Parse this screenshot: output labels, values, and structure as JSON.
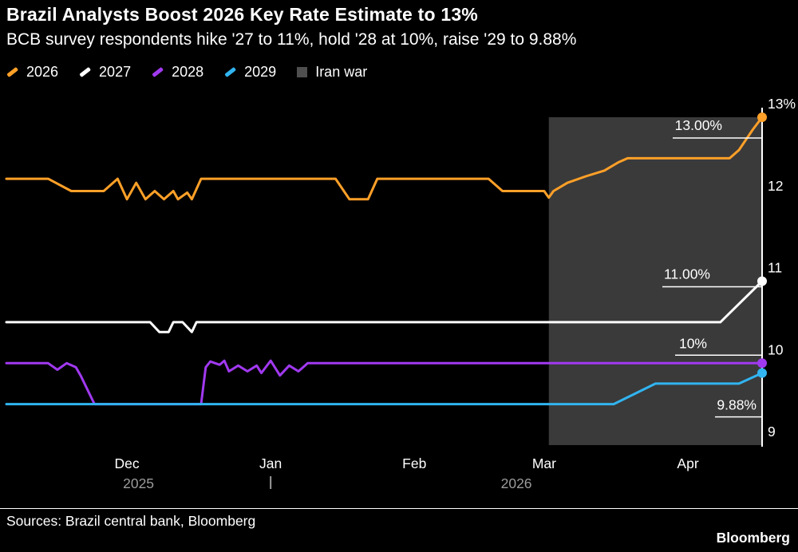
{
  "header": {
    "title": "Brazil Analysts Boost 2026 Key Rate Estimate to 13%",
    "subtitle": "BCB survey respondents hike '27 to 11%, hold '28 at 10%, raise '29 to 9.88%"
  },
  "legend": {
    "items": [
      {
        "label": "2026",
        "color": "#FFA028",
        "marker": "line"
      },
      {
        "label": "2027",
        "color": "#FFFFFF",
        "marker": "line"
      },
      {
        "label": "2028",
        "color": "#A139F0",
        "marker": "line"
      },
      {
        "label": "2029",
        "color": "#31B4F0",
        "marker": "line"
      },
      {
        "label": "Iran war",
        "color": "#4F4F4F",
        "marker": "square"
      }
    ]
  },
  "chart_data": {
    "type": "line",
    "title": "Brazil Analysts Boost 2026 Key Rate Estimate to 13%",
    "x_axis": {
      "max_day": 163,
      "month_ticks": [
        {
          "day": 26,
          "label": "Dec"
        },
        {
          "day": 57,
          "label": "Jan"
        },
        {
          "day": 88,
          "label": "Feb"
        },
        {
          "day": 116,
          "label": "Mar"
        },
        {
          "day": 147,
          "label": "Apr"
        }
      ],
      "year_labels": [
        {
          "label": "2025",
          "start_day": 0,
          "end_day": 57
        },
        {
          "label": "2026",
          "start_day": 57,
          "end_day": 163
        }
      ],
      "year_boundary_day": 57
    },
    "y_axis": {
      "min": 9,
      "max": 13,
      "ticks": [
        {
          "value": 13,
          "label": "13%"
        },
        {
          "value": 12,
          "label": "12"
        },
        {
          "value": 11,
          "label": "11"
        },
        {
          "value": 10,
          "label": "10"
        },
        {
          "value": 9,
          "label": "9"
        }
      ]
    },
    "shaded_region": {
      "label": "Iran war",
      "start_day": 117,
      "end_day": 163,
      "color": "#3A3A3A"
    },
    "series": [
      {
        "name": "2026",
        "color": "#FFA028",
        "end_label": "13.00%",
        "points": [
          [
            0,
            12.25
          ],
          [
            9,
            12.25
          ],
          [
            14,
            12.1
          ],
          [
            21,
            12.1
          ],
          [
            24,
            12.25
          ],
          [
            26,
            12.0
          ],
          [
            28,
            12.2
          ],
          [
            30,
            12.0
          ],
          [
            32,
            12.1
          ],
          [
            34,
            12.0
          ],
          [
            36,
            12.1
          ],
          [
            37,
            12.0
          ],
          [
            39,
            12.08
          ],
          [
            40,
            12.0
          ],
          [
            42,
            12.25
          ],
          [
            71,
            12.25
          ],
          [
            74,
            12.0
          ],
          [
            78,
            12.0
          ],
          [
            80,
            12.25
          ],
          [
            104,
            12.25
          ],
          [
            107,
            12.1
          ],
          [
            116,
            12.1
          ],
          [
            117,
            12.02
          ],
          [
            118,
            12.1
          ],
          [
            121,
            12.2
          ],
          [
            125,
            12.28
          ],
          [
            129,
            12.35
          ],
          [
            132,
            12.45
          ],
          [
            134,
            12.5
          ],
          [
            156,
            12.5
          ],
          [
            158,
            12.6
          ],
          [
            161,
            12.85
          ],
          [
            163,
            13.0
          ]
        ]
      },
      {
        "name": "2027",
        "color": "#FFFFFF",
        "end_label": "11.00%",
        "points": [
          [
            0,
            10.5
          ],
          [
            31,
            10.5
          ],
          [
            33,
            10.38
          ],
          [
            35,
            10.38
          ],
          [
            36,
            10.5
          ],
          [
            38,
            10.5
          ],
          [
            40,
            10.38
          ],
          [
            41,
            10.5
          ],
          [
            43,
            10.5
          ],
          [
            154,
            10.5
          ],
          [
            163,
            11.0
          ]
        ]
      },
      {
        "name": "2028",
        "color": "#A139F0",
        "end_label": "10%",
        "points": [
          [
            0,
            10.0
          ],
          [
            9,
            10.0
          ],
          [
            11,
            9.92
          ],
          [
            13,
            10.0
          ],
          [
            15,
            9.95
          ],
          [
            16,
            9.85
          ],
          [
            19,
            9.5
          ],
          [
            42,
            9.5
          ],
          [
            43,
            9.95
          ],
          [
            44,
            10.02
          ],
          [
            46,
            9.98
          ],
          [
            47,
            10.03
          ],
          [
            48,
            9.9
          ],
          [
            50,
            9.97
          ],
          [
            52,
            9.9
          ],
          [
            54,
            9.97
          ],
          [
            55,
            9.88
          ],
          [
            57,
            10.03
          ],
          [
            59,
            9.85
          ],
          [
            61,
            9.97
          ],
          [
            63,
            9.9
          ],
          [
            65,
            10.0
          ],
          [
            163,
            10.0
          ]
        ]
      },
      {
        "name": "2029",
        "color": "#31B4F0",
        "end_label": "9.88%",
        "points": [
          [
            0,
            9.5
          ],
          [
            131,
            9.5
          ],
          [
            140,
            9.75
          ],
          [
            158,
            9.75
          ],
          [
            163,
            9.88
          ]
        ]
      }
    ]
  },
  "footer": {
    "sources": "Sources: Brazil central bank, Bloomberg",
    "brand": "Bloomberg"
  }
}
